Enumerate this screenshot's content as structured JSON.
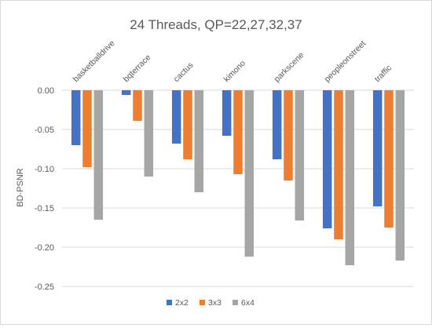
{
  "chart_data": {
    "type": "bar",
    "title": "24 Threads, QP=22,27,32,37",
    "xlabel": "",
    "ylabel": "BD-PSNR",
    "ylim": [
      -0.25,
      0.0
    ],
    "yticks": [
      0.0,
      -0.05,
      -0.1,
      -0.15,
      -0.2,
      -0.25
    ],
    "ytick_labels": [
      "0.00",
      "-0.05",
      "-0.10",
      "-0.15",
      "-0.20",
      "-0.25"
    ],
    "grid": true,
    "legend_position": "bottom",
    "category_label_position": "top-rotated",
    "categories": [
      "basketballdrive",
      "bqterrace",
      "cactus",
      "kimono",
      "parkscene",
      "peopleonstreet",
      "traffic"
    ],
    "series": [
      {
        "name": "2x2",
        "color": "#4472c4",
        "values": [
          -0.07,
          -0.006,
          -0.068,
          -0.058,
          -0.088,
          -0.176,
          -0.148
        ]
      },
      {
        "name": "3x3",
        "color": "#ed7d31",
        "values": [
          -0.098,
          -0.039,
          -0.088,
          -0.107,
          -0.115,
          -0.19,
          -0.175
        ]
      },
      {
        "name": "6x4",
        "color": "#a5a5a5",
        "values": [
          -0.165,
          -0.11,
          -0.13,
          -0.212,
          -0.166,
          -0.223,
          -0.217
        ]
      }
    ]
  }
}
